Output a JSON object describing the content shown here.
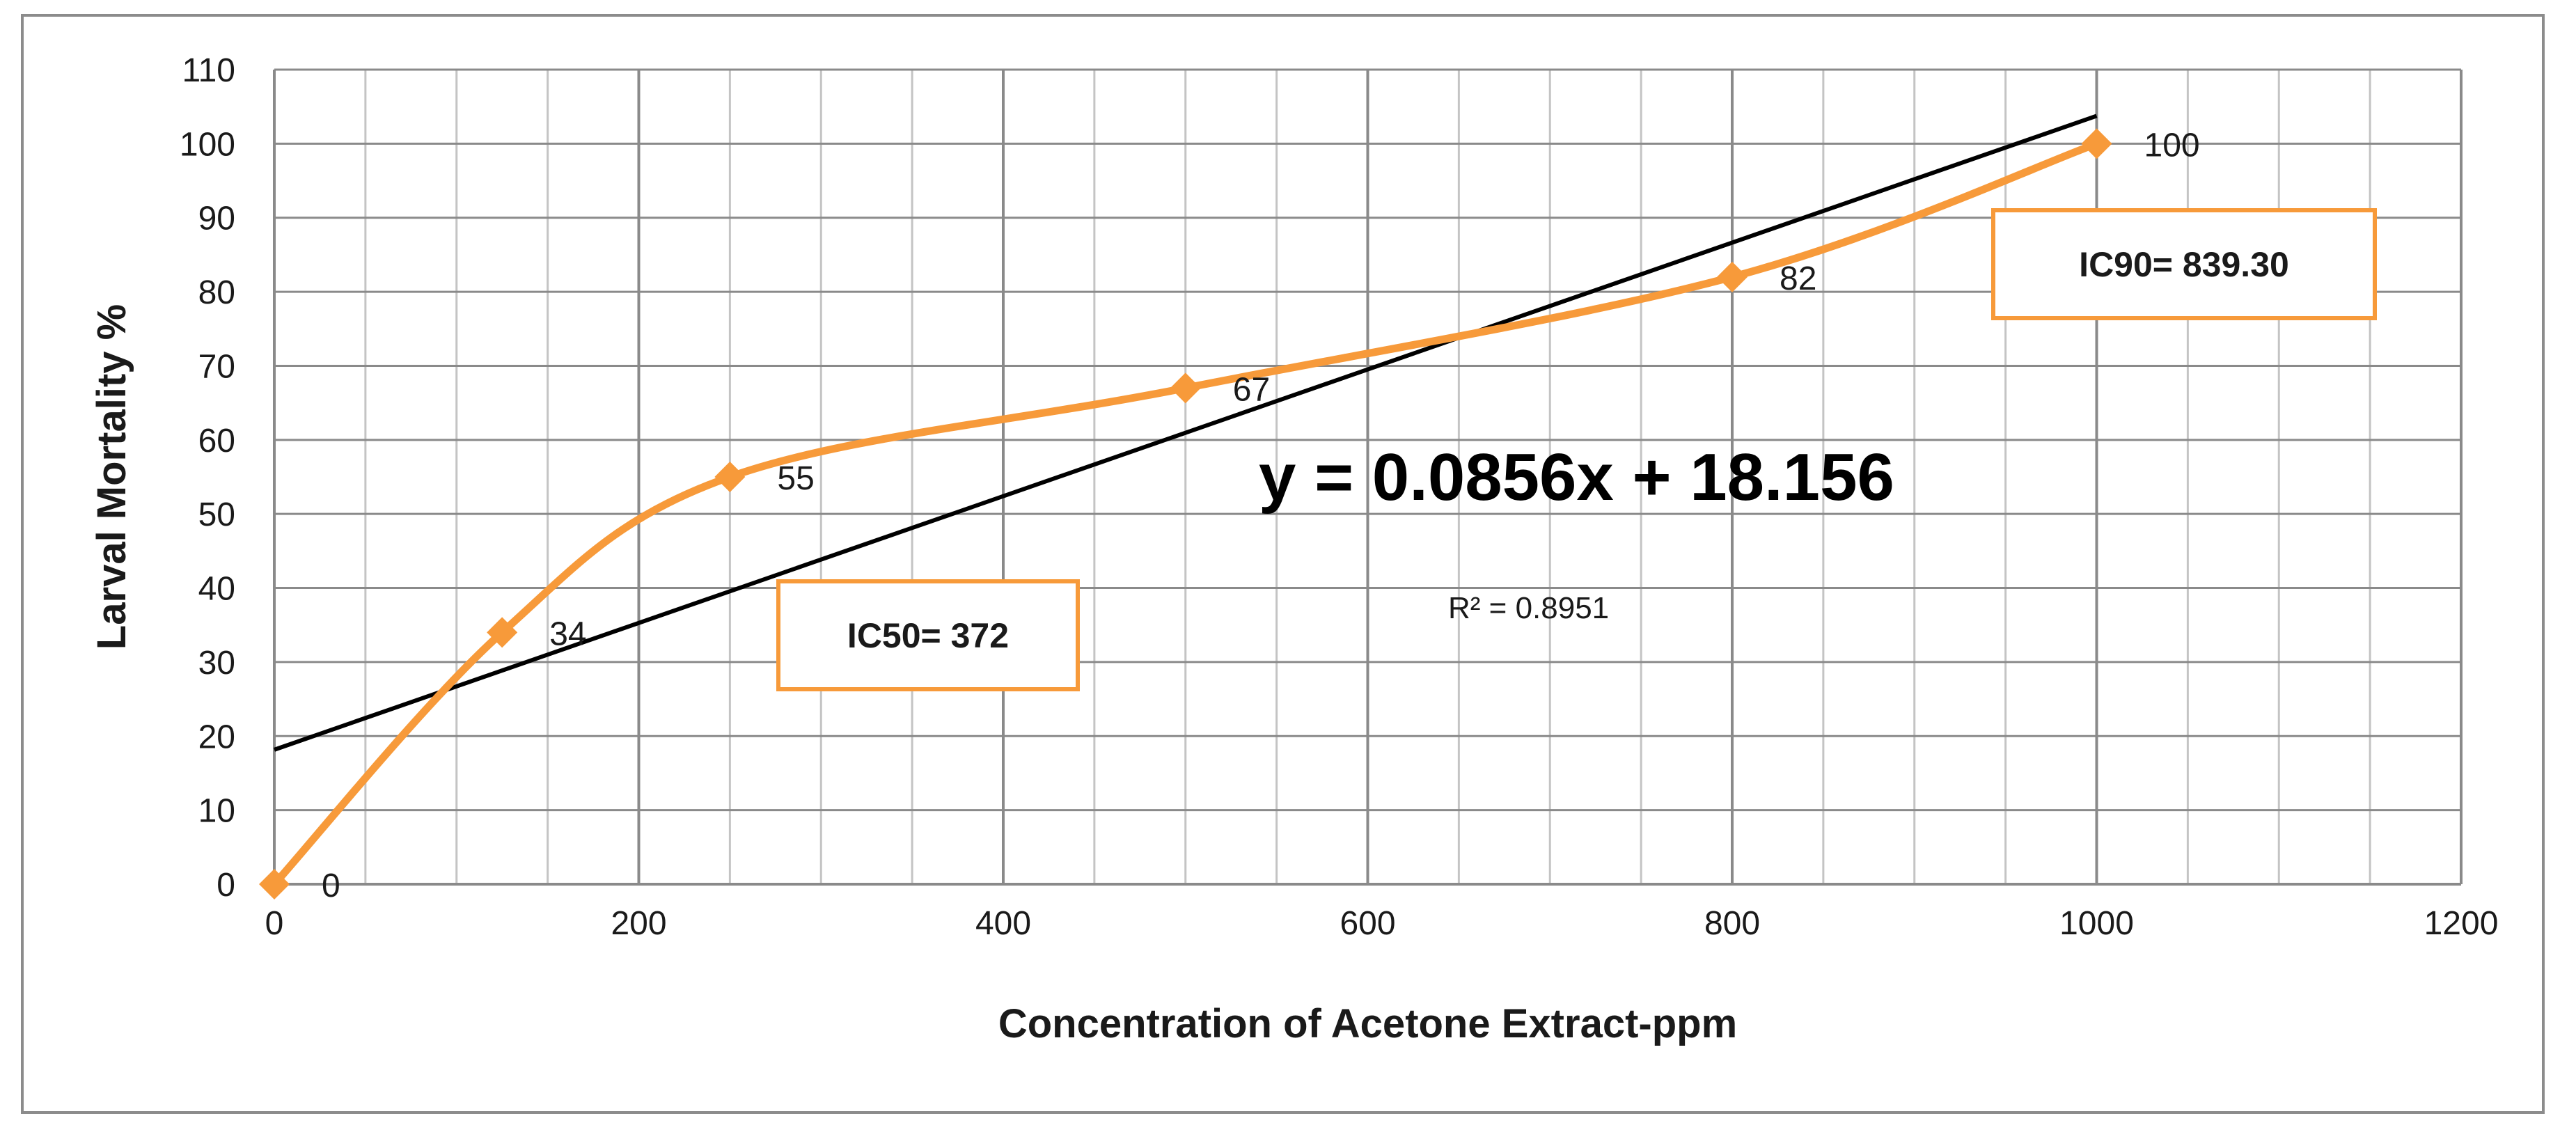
{
  "chart_data": {
    "type": "line",
    "xlabel": "Concentration of Acetone Extract-ppm",
    "ylabel": "Larval Mortality %",
    "xlim": [
      0,
      1200
    ],
    "ylim": [
      0,
      110
    ],
    "x_ticks": [
      0,
      200,
      400,
      600,
      800,
      1000,
      1200
    ],
    "y_ticks": [
      0,
      10,
      20,
      30,
      40,
      50,
      60,
      70,
      80,
      90,
      100,
      110
    ],
    "grid": true,
    "series": [
      {
        "x": [
          0,
          125,
          250,
          500,
          800,
          1000
        ],
        "values": [
          0,
          34,
          55,
          67,
          82,
          100
        ],
        "data_labels": [
          "0",
          "34",
          "55",
          "67",
          "82",
          "100"
        ],
        "color": "#f79a3a",
        "marker": "diamond",
        "smooth": true
      }
    ],
    "trendline": {
      "slope": 0.0856,
      "intercept": 18.156,
      "x_range": [
        0,
        1000
      ],
      "color": "#000000",
      "equation": "y = 0.0856x + 18.156",
      "r_squared": "R² = 0.8951"
    },
    "annotations": [
      {
        "text": "IC50= 372",
        "border_color": "#f79a3a"
      },
      {
        "text": "IC90= 839.30",
        "border_color": "#f79a3a"
      }
    ]
  }
}
